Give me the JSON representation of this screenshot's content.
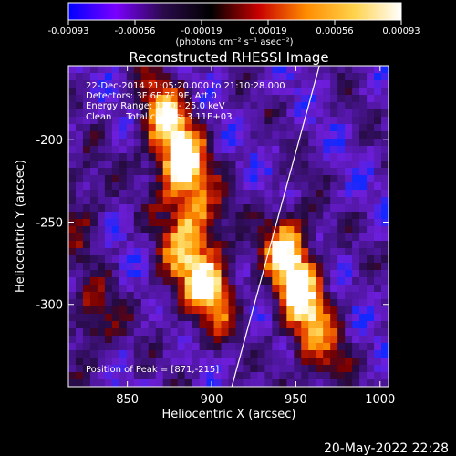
{
  "chart_data": {
    "type": "heatmap",
    "title": "Reconstructed RHESSI Image",
    "xlabel": "Heliocentric X (arcsec)",
    "ylabel": "Heliocentric Y (arcsec)",
    "xlim": [
      815,
      1005
    ],
    "ylim": [
      -350,
      -155
    ],
    "x_ticks": [
      850,
      900,
      950,
      1000
    ],
    "y_ticks": [
      -200,
      -250,
      -300
    ],
    "colorbar": {
      "range": [
        -0.00093,
        0.00093
      ],
      "tick_labels": [
        "-0.00093",
        "-0.00056",
        "-0.00019",
        "0.00019",
        "0.00056",
        "0.00093"
      ],
      "unit_label": "(photons cm⁻² s⁻¹ asec⁻²)",
      "colormap": [
        "#0000ff",
        "#7a00ff",
        "#2a0a4a",
        "#000000",
        "#c80000",
        "#ff8c00",
        "#ffd24a",
        "#ffffff"
      ]
    },
    "annotations": {
      "time_range": "22-Dec-2014 21:05:20.000 to 21:10:28.000",
      "detectors": "Detectors: 3F 6F 7F 9F, Att 0",
      "energy": "Energy Range: 12.0 - 25.0 keV",
      "clean_totals": "Clean     Total counts: 3.11E+03",
      "peak": "Position of Peak = [871,-215]"
    },
    "limb_line": {
      "x": [
        912,
        964
      ],
      "y": [
        -350,
        -155
      ]
    },
    "sources": [
      {
        "x": 882,
        "y": -215,
        "intensity": 1.0
      },
      {
        "x": 870,
        "y": -185,
        "intensity": 0.7
      },
      {
        "x": 892,
        "y": -248,
        "intensity": 0.55
      },
      {
        "x": 900,
        "y": -292,
        "intensity": 0.85
      },
      {
        "x": 880,
        "y": -275,
        "intensity": 0.5
      },
      {
        "x": 945,
        "y": -268,
        "intensity": 0.9
      },
      {
        "x": 955,
        "y": -300,
        "intensity": 0.75
      },
      {
        "x": 965,
        "y": -330,
        "intensity": 0.45
      },
      {
        "x": 830,
        "y": -310,
        "intensity": 0.45
      },
      {
        "x": 822,
        "y": -240,
        "intensity": 0.35
      }
    ],
    "grid": false
  },
  "footer": {
    "date": "20-May-2022 22:28"
  }
}
